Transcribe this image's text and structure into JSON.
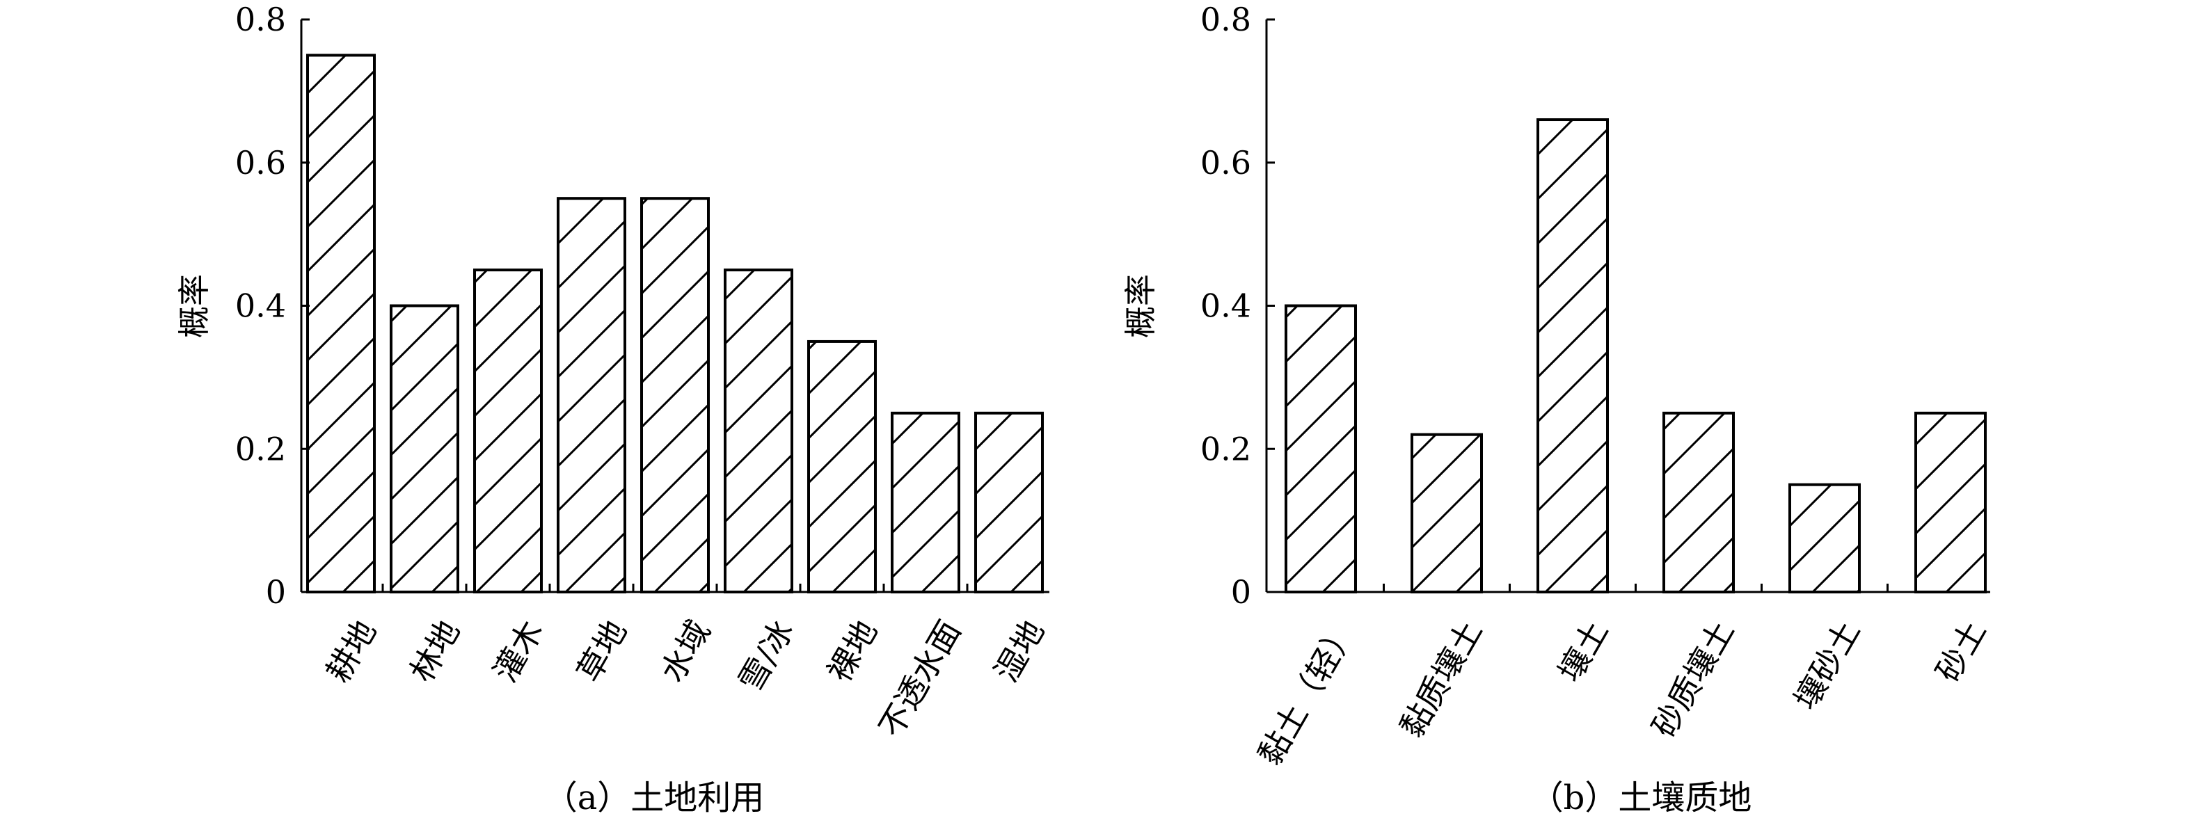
{
  "chart_data": [
    {
      "type": "bar",
      "caption": "（a）土地利用",
      "ylabel": "概率",
      "ylim": [
        0,
        0.8
      ],
      "yticks": [
        "0",
        "0.2",
        "0.4",
        "0.6",
        "0.8"
      ],
      "categories": [
        "耕地",
        "林地",
        "灌木",
        "草地",
        "水域",
        "雪/冰",
        "裸地",
        "不透水面",
        "湿地"
      ],
      "values": [
        0.75,
        0.4,
        0.45,
        0.55,
        0.55,
        0.45,
        0.35,
        0.25,
        0.25
      ],
      "fill_pattern": "diagonal hatch",
      "grid": false,
      "legend": "none"
    },
    {
      "type": "bar",
      "caption": "（b）土壤质地",
      "ylabel": "概率",
      "ylim": [
        0,
        0.8
      ],
      "yticks": [
        "0",
        "0.2",
        "0.4",
        "0.6",
        "0.8"
      ],
      "categories": [
        "黏土（轻）",
        "黏质壤土",
        "壤土",
        "砂质壤土",
        "壤砂土",
        "砂土"
      ],
      "values": [
        0.4,
        0.22,
        0.66,
        0.25,
        0.15,
        0.25
      ],
      "fill_pattern": "diagonal hatch",
      "grid": false,
      "legend": "none"
    }
  ],
  "colors": {
    "ink": "#000000",
    "background": "#ffffff"
  }
}
